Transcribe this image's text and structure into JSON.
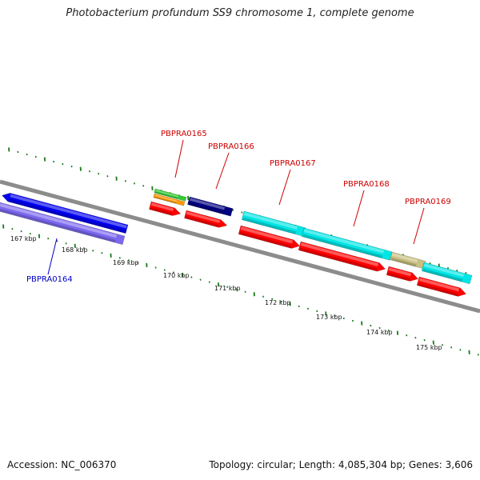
{
  "title": "Photobacterium profundum SS9 chromosome 1, complete genome",
  "footer": {
    "accession": "Accession: NC_006370",
    "stats": "Topology: circular; Length: 4,085,304 bp; Genes: 3,606"
  },
  "scale": {
    "labels": [
      "167 kbp",
      "168 kbp",
      "169 kbp",
      "170 kbp",
      "171 kbp",
      "172 kbp",
      "173 kbp",
      "174 kbp",
      "175 kbp"
    ]
  },
  "genes": [
    {
      "id": "g0164",
      "label": "PBPRA0164",
      "strand": "reverse",
      "color": "#0000ee",
      "label_color": "#0000cc"
    },
    {
      "id": "g0165",
      "label": "PBPRA0165",
      "strand": "forward",
      "color": "#ff0000",
      "label_color": "#cc0000"
    },
    {
      "id": "g0166",
      "label": "PBPRA0166",
      "strand": "forward",
      "color": "#000080",
      "label_color": "#cc0000"
    },
    {
      "id": "g0167",
      "label": "PBPRA0167",
      "strand": "forward",
      "color": "#00e5e5",
      "label_color": "#cc0000"
    },
    {
      "id": "g0168",
      "label": "PBPRA0168",
      "strand": "forward",
      "color": "#00e5e5",
      "label_color": "#cc0000"
    },
    {
      "id": "g0169",
      "label": "PBPRA0169",
      "strand": "forward",
      "color": "#00e5e5",
      "label_color": "#cc0000"
    }
  ],
  "colors": {
    "backbone": "#8c8c8c",
    "tick": "#1a7a1a",
    "cds_red": "#ff0000",
    "cds_purple": "#7b68ee",
    "green_feature": "#33cc33",
    "orange_feature": "#ff9900",
    "khaki_feature": "#c8c080"
  }
}
